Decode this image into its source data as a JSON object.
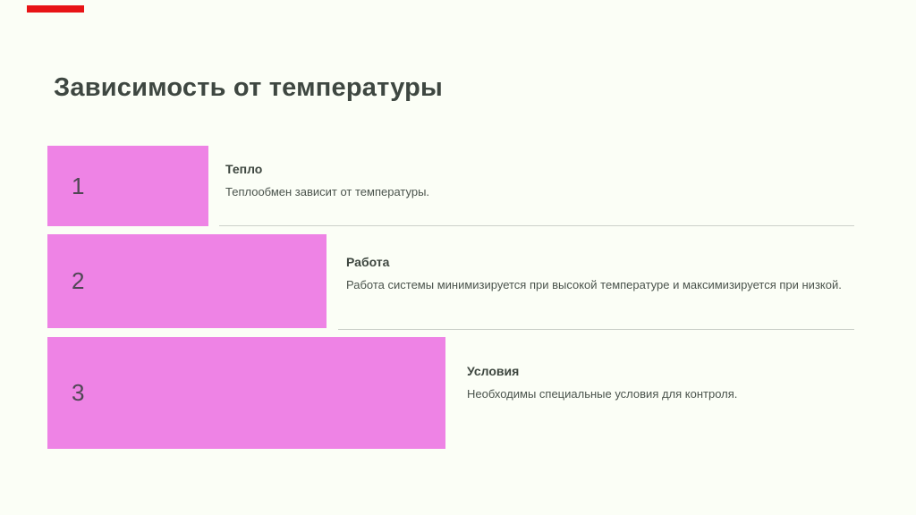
{
  "slide": {
    "title": "Зависимость от температуры",
    "items": [
      {
        "number": "1",
        "heading": "Тепло",
        "body": "Теплообмен зависит от температуры."
      },
      {
        "number": "2",
        "heading": "Работа",
        "body": "Работа системы минимизируется при высокой температуре и максимизируется при низкой."
      },
      {
        "number": "3",
        "heading": "Условия",
        "body": "Необходимы специальные условия для контроля."
      }
    ],
    "colors": {
      "background": "#fbfef6",
      "accent_bar": "#e81416",
      "item_bar": "#ee83e5",
      "title_text": "#3e4741",
      "heading_text": "#3d463f",
      "body_text": "#4b544d",
      "number_text": "#4f4754",
      "divider": "#ccd1ca"
    }
  }
}
